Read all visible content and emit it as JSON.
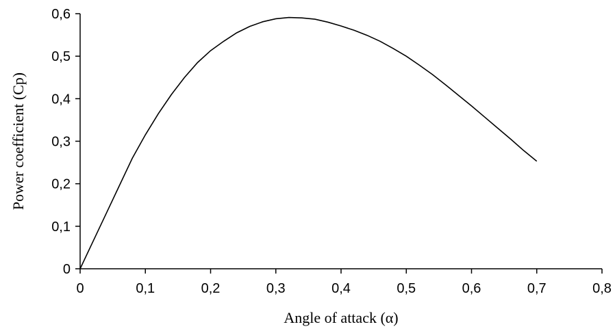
{
  "chart_data": {
    "type": "line",
    "title": "",
    "xlabel": "Angle of attack (α)",
    "ylabel": "Power coefficient (Cp)",
    "xlim": [
      0,
      0.8
    ],
    "ylim": [
      0,
      0.6
    ],
    "x_ticks": [
      "0",
      "0,1",
      "0,2",
      "0,3",
      "0,4",
      "0,5",
      "0,6",
      "0,7",
      "0,8"
    ],
    "y_ticks": [
      "0",
      "0,1",
      "0,2",
      "0,3",
      "0,4",
      "0,5",
      "0,6"
    ],
    "grid": false,
    "legend": "none",
    "line_color": "#000000",
    "series": [
      {
        "x": [
          0,
          0.02,
          0.04,
          0.06,
          0.08,
          0.1,
          0.12,
          0.14,
          0.16,
          0.18,
          0.2,
          0.22,
          0.24,
          0.26,
          0.28,
          0.3,
          0.32,
          0.34,
          0.36,
          0.38,
          0.4,
          0.42,
          0.44,
          0.46,
          0.48,
          0.5,
          0.52,
          0.54,
          0.56,
          0.58,
          0.6,
          0.62,
          0.64,
          0.66,
          0.68,
          0.7
        ],
        "y": [
          0,
          0.065,
          0.13,
          0.195,
          0.26,
          0.315,
          0.365,
          0.41,
          0.45,
          0.485,
          0.513,
          0.535,
          0.555,
          0.57,
          0.581,
          0.588,
          0.591,
          0.59,
          0.587,
          0.58,
          0.571,
          0.561,
          0.549,
          0.535,
          0.518,
          0.5,
          0.479,
          0.457,
          0.433,
          0.408,
          0.383,
          0.357,
          0.331,
          0.305,
          0.278,
          0.253
        ]
      }
    ]
  }
}
